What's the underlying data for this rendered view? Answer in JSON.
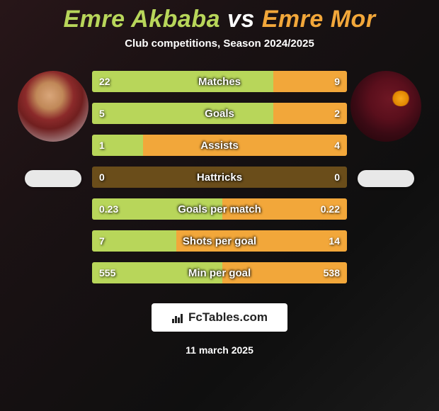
{
  "title": {
    "player1_name": "Emre Akbaba",
    "vs": "vs",
    "player2_name": "Emre Mor",
    "player1_color": "#b8d65a",
    "player2_color": "#f2a73a",
    "vs_color": "#ffffff"
  },
  "subtitle": "Club competitions, Season 2024/2025",
  "bar_style": {
    "base_color": "#6a4d1a",
    "left_fill_color": "#b8d65a",
    "right_fill_color": "#f2a73a",
    "height": 30,
    "border_radius": 3
  },
  "stats": [
    {
      "label": "Matches",
      "left_value": "22",
      "right_value": "9",
      "left_pct": 71,
      "right_pct": 29
    },
    {
      "label": "Goals",
      "left_value": "5",
      "right_value": "2",
      "left_pct": 71,
      "right_pct": 29
    },
    {
      "label": "Assists",
      "left_value": "1",
      "right_value": "4",
      "left_pct": 20,
      "right_pct": 80
    },
    {
      "label": "Hattricks",
      "left_value": "0",
      "right_value": "0",
      "left_pct": 0,
      "right_pct": 0
    },
    {
      "label": "Goals per match",
      "left_value": "0.23",
      "right_value": "0.22",
      "left_pct": 51,
      "right_pct": 49
    },
    {
      "label": "Shots per goal",
      "left_value": "7",
      "right_value": "14",
      "left_pct": 33,
      "right_pct": 67
    },
    {
      "label": "Min per goal",
      "left_value": "555",
      "right_value": "538",
      "left_pct": 51,
      "right_pct": 49
    }
  ],
  "brand": "FcTables.com",
  "date": "11 march 2025"
}
